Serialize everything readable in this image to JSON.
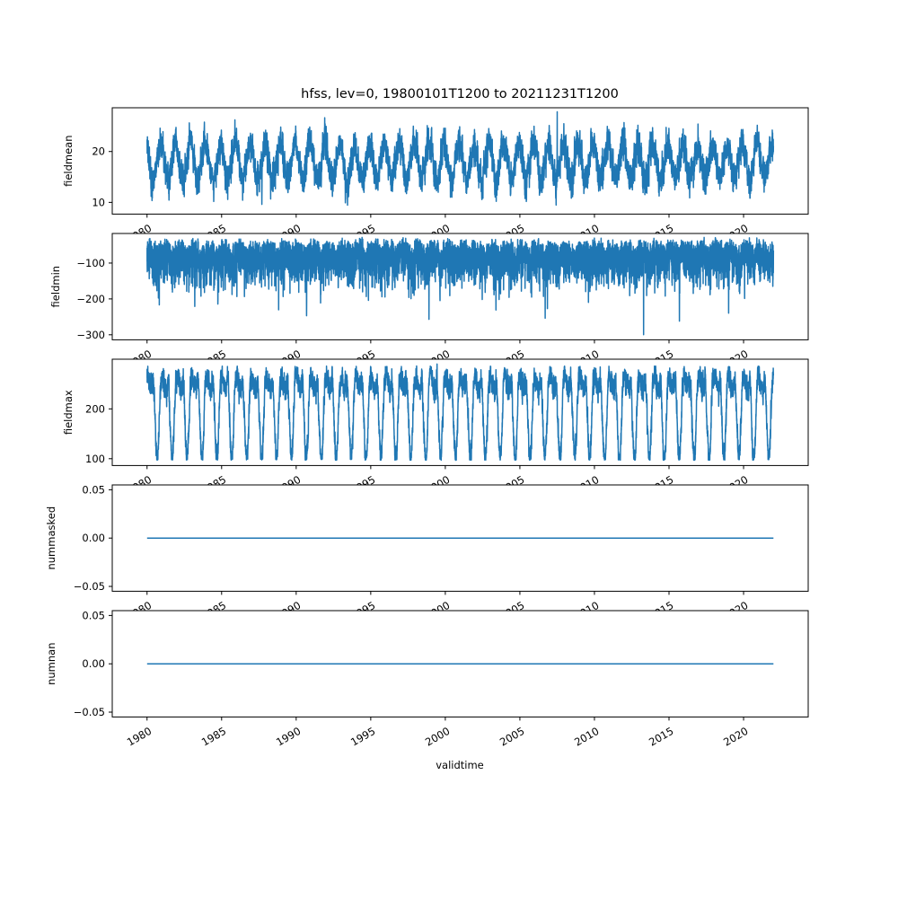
{
  "figure": {
    "title": "hfss, lev=0, 19800101T1200 to 20211231T1200",
    "xlabel": "validtime",
    "background_color": "#ffffff",
    "axis_color": "#000000",
    "line_color": "#1f77b4",
    "x_start": 1980.0,
    "x_end": 2022.0,
    "x_tick_values": [
      1980,
      1985,
      1990,
      1995,
      2000,
      2005,
      2010,
      2015,
      2020
    ],
    "x_tick_labels": [
      "1980",
      "1985",
      "1990",
      "1995",
      "2000",
      "2005",
      "2010",
      "2015",
      "2020"
    ]
  },
  "chart_data": [
    {
      "type": "line",
      "ylabel": "fieldmean",
      "ylim": [
        7.7,
        28.6
      ],
      "y_ticks": [
        10,
        20
      ],
      "y_tick_labels": [
        "10",
        "20"
      ],
      "grid": false,
      "series": [
        {
          "name": "fieldmean",
          "color": "#1f77b4",
          "n_points": 7000,
          "seed": 11,
          "base": 18.0,
          "sin_amp": 3.6,
          "sin_phase": -0.67,
          "noise_sd": 1.6,
          "noise_rho": 0.45,
          "clamp_min": 9.4,
          "clamp_max": 27.2,
          "events": [
            [
              1987.7,
              9.6
            ],
            [
              1993.3,
              9.9
            ],
            [
              2007.5,
              27.8
            ]
          ],
          "approx_mean": 18.0,
          "approx_min": 9.4,
          "approx_max": 27.8
        }
      ]
    },
    {
      "type": "line",
      "ylabel": "fieldmin",
      "ylim": [
        -314,
        -17.5
      ],
      "y_ticks": [
        -100,
        -200,
        -300
      ],
      "y_tick_labels": [
        "−100",
        "−200",
        "−300"
      ],
      "grid": false,
      "series": [
        {
          "name": "fieldmin",
          "color": "#1f77b4",
          "n_points": 7000,
          "seed": 22,
          "base": -28,
          "absnoise_amp": -48,
          "absnoise2_amp": -22,
          "dip_amp": -18,
          "dip_phase": -0.42,
          "dip_pow": 2,
          "noise_rho": 0.35,
          "clamp_min": -262,
          "clamp_max": -27,
          "events": [
            [
              1983.2,
              -221
            ],
            [
              1990.7,
              -247
            ],
            [
              1998.9,
              -257
            ],
            [
              2003.4,
              -231
            ],
            [
              2006.7,
              -254
            ],
            [
              2013.3,
              -300
            ],
            [
              2015.7,
              -262
            ],
            [
              2019.0,
              -240
            ]
          ],
          "approx_max": -28,
          "approx_min": -300
        }
      ]
    },
    {
      "type": "line",
      "ylabel": "fieldmax",
      "ylim": [
        86.3,
        299.7
      ],
      "y_ticks": [
        100,
        200
      ],
      "y_tick_labels": [
        "100",
        "200"
      ],
      "grid": false,
      "series": [
        {
          "name": "fieldmax",
          "color": "#1f77b4",
          "n_points": 7000,
          "seed": 33,
          "base": 252,
          "sin2_amp": 12,
          "dip_amp": -150,
          "dip_phase": -0.42,
          "dip_pow": 1.5,
          "noise_sd": 12,
          "noise_rho": 0.45,
          "clamp_min": 97,
          "clamp_max": 286,
          "events": [
            [
              1999.45,
              290
            ]
          ],
          "approx_min": 96,
          "approx_max": 290
        }
      ]
    },
    {
      "type": "line",
      "ylabel": "nummasked",
      "ylim": [
        -0.055,
        0.055
      ],
      "y_ticks": [
        0.05,
        0.0,
        -0.05
      ],
      "y_tick_labels": [
        "0.05",
        "0.00",
        "−0.05"
      ],
      "grid": false,
      "series": [
        {
          "name": "nummasked",
          "color": "#1f77b4",
          "n_points": 2,
          "seed": 44,
          "base": 0,
          "constant_value": 0
        }
      ]
    },
    {
      "type": "line",
      "ylabel": "numnan",
      "ylim": [
        -0.055,
        0.055
      ],
      "y_ticks": [
        0.05,
        0.0,
        -0.05
      ],
      "y_tick_labels": [
        "0.05",
        "0.00",
        "−0.05"
      ],
      "grid": false,
      "series": [
        {
          "name": "numnan",
          "color": "#1f77b4",
          "n_points": 2,
          "seed": 55,
          "base": 0,
          "constant_value": 0
        }
      ]
    }
  ]
}
